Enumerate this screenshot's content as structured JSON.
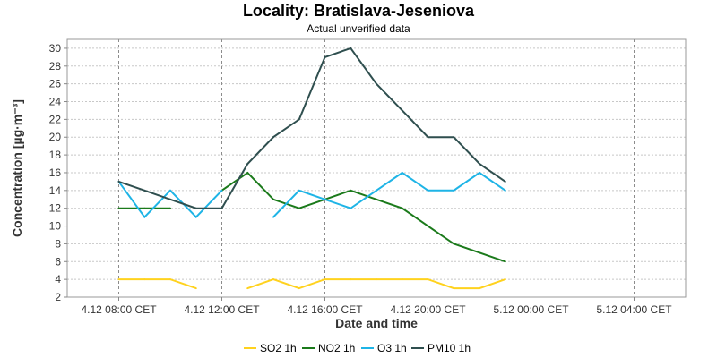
{
  "chart_data": {
    "type": "line",
    "title": "Locality: Bratislava-Jeseniova",
    "subtitle": "Actual unverified data",
    "xlabel": "Date and time",
    "ylabel": "Concentration [µg·m⁻³]",
    "ylim": [
      2,
      31
    ],
    "yticks": [
      2,
      4,
      6,
      8,
      10,
      12,
      14,
      16,
      18,
      20,
      22,
      24,
      26,
      28,
      30
    ],
    "xlim": [
      "4.12 06:00",
      "5.12 06:00"
    ],
    "xticks": [
      {
        "at": "4.12 08:00",
        "label": "4.12 08:00 CET"
      },
      {
        "at": "4.12 12:00",
        "label": "4.12 12:00 CET"
      },
      {
        "at": "4.12 16:00",
        "label": "4.12 16:00 CET"
      },
      {
        "at": "4.12 20:00",
        "label": "4.12 20:00 CET"
      },
      {
        "at": "5.12 00:00",
        "label": "5.12 00:00 CET"
      },
      {
        "at": "5.12 04:00",
        "label": "5.12 04:00 CET"
      }
    ],
    "grid": true,
    "legend_position": "bottom",
    "x": [
      "4.12 08:00",
      "4.12 09:00",
      "4.12 10:00",
      "4.12 11:00",
      "4.12 12:00",
      "4.12 13:00",
      "4.12 14:00",
      "4.12 15:00",
      "4.12 16:00",
      "4.12 17:00",
      "4.12 18:00",
      "4.12 19:00",
      "4.12 20:00",
      "4.12 21:00",
      "4.12 22:00",
      "4.12 23:00"
    ],
    "series": [
      {
        "name": "SO2 1h",
        "color": "#ffd21e",
        "values": [
          4,
          4,
          4,
          3,
          null,
          3,
          4,
          3,
          4,
          4,
          4,
          4,
          4,
          3,
          3,
          4
        ]
      },
      {
        "name": "NO2 1h",
        "color": "#1b7a1b",
        "values": [
          12,
          12,
          12,
          null,
          14,
          16,
          13,
          12,
          13,
          14,
          13,
          12,
          10,
          8,
          7,
          6
        ]
      },
      {
        "name": "O3 1h",
        "color": "#1eb4e6",
        "values": [
          15,
          11,
          14,
          11,
          14,
          null,
          11,
          14,
          13,
          12,
          14,
          16,
          14,
          14,
          16,
          14
        ]
      },
      {
        "name": "PM10 1h",
        "color": "#2f4f4f",
        "values": [
          15,
          14,
          13,
          12,
          12,
          17,
          20,
          22,
          29,
          30,
          26,
          23,
          20,
          20,
          17,
          15
        ]
      }
    ]
  }
}
